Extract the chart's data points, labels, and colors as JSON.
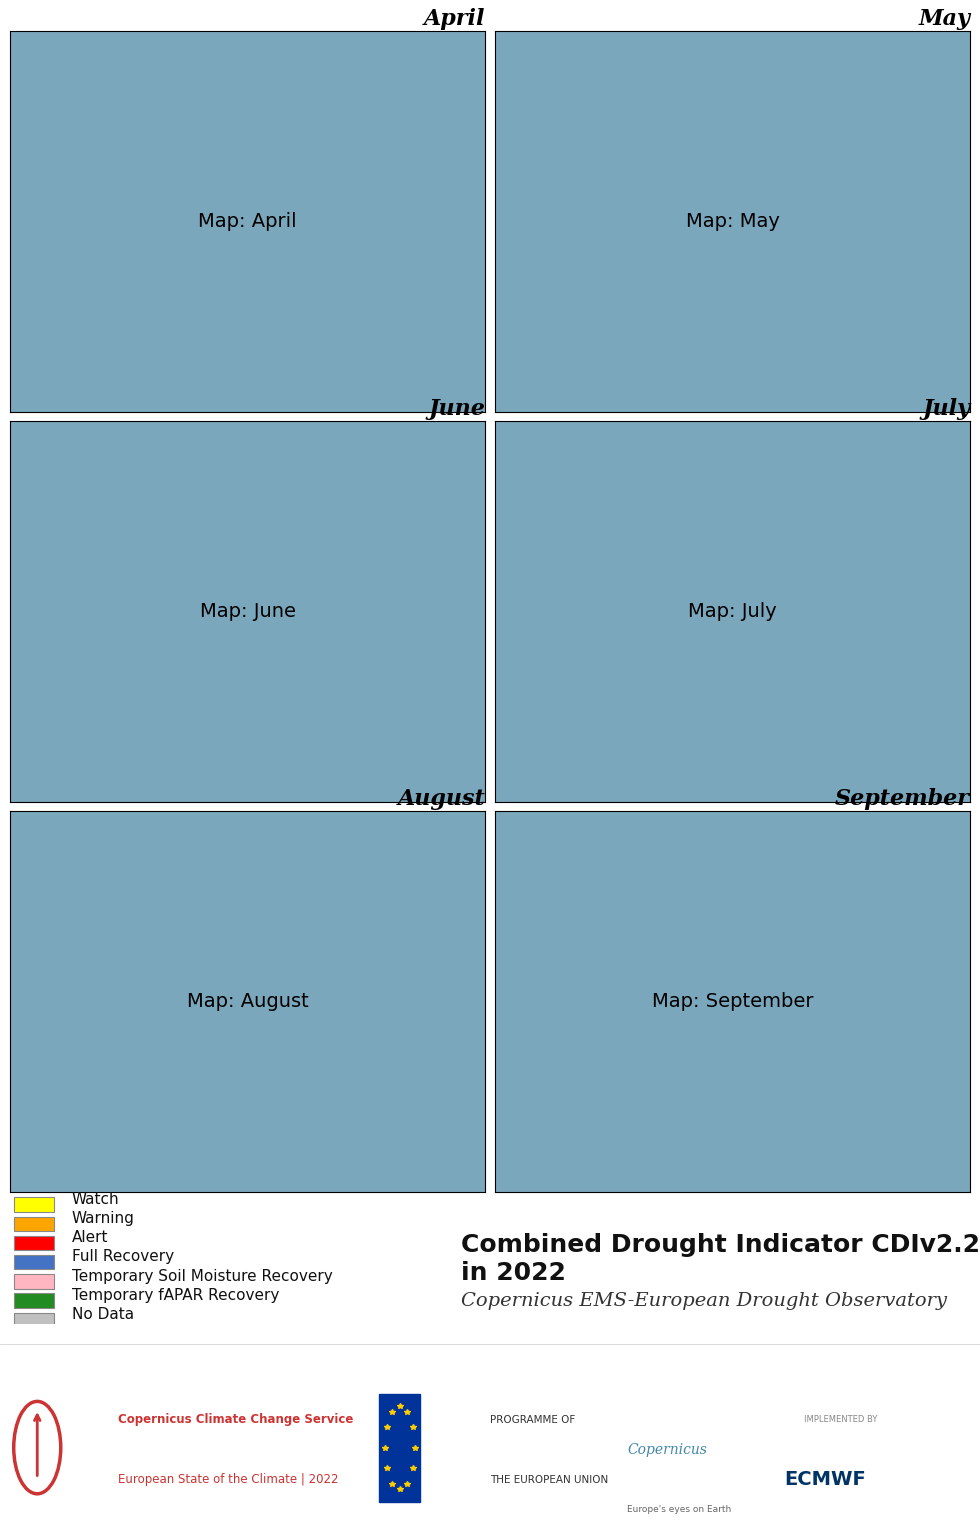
{
  "title": "Combined Drought Indicator CDIv2.2 in 2022",
  "subtitle": "Copernicus EMS-European Drought Observatory",
  "months": [
    "April",
    "May",
    "June",
    "July",
    "August",
    "September"
  ],
  "legend_items": [
    {
      "label": "Watch",
      "color": "#FFFF00"
    },
    {
      "label": "Warning",
      "color": "#FFA500"
    },
    {
      "label": "Alert",
      "color": "#FF0000"
    },
    {
      "label": "Full Recovery",
      "color": "#4472C4"
    },
    {
      "label": "Temporary Soil Moisture Recovery",
      "color": "#FFB6C1"
    },
    {
      "label": "Temporary fAPAR Recovery",
      "color": "#228B22"
    },
    {
      "label": "No Data",
      "color": "#C0C0C0"
    }
  ],
  "bg_color": "#FFFFFF",
  "map_bg": "#7BA7BC",
  "land_bg": "#D3D3D3",
  "panel_title_fontsize": 16,
  "legend_fontsize": 11,
  "title_fontsize": 18,
  "subtitle_fontsize": 14,
  "footer_text_left": "Copernicus Climate Change Service\nEuropean State of the Climate | 2022",
  "footer_text_middle": "PROGRAMME OF\nTHE EUROPEAN UNION",
  "figsize": [
    9.8,
    15.4
  ],
  "dpi": 100
}
